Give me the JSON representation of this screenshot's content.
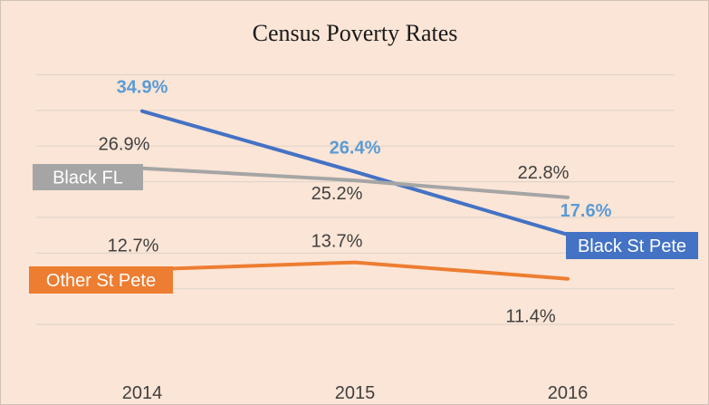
{
  "chart_data": {
    "type": "line",
    "title": "Census Poverty Rates",
    "xlabel": "",
    "ylabel": "",
    "categories": [
      "2014",
      "2015",
      "2016"
    ],
    "ylim": [
      0,
      40
    ],
    "grid": true,
    "legend": "inline series labels",
    "series": [
      {
        "name": "Black St Pete",
        "values": [
          34.9,
          26.4,
          17.6
        ],
        "labels": [
          "34.9%",
          "26.4%",
          "17.6%"
        ],
        "color": "#4472c4",
        "label_color": "#5b9bd5"
      },
      {
        "name": "Black FL",
        "values": [
          26.9,
          25.2,
          22.8
        ],
        "labels": [
          "26.9%",
          "25.2%",
          "22.8%"
        ],
        "color": "#a5a5a5",
        "label_color": "#404040"
      },
      {
        "name": "Other St Pete",
        "values": [
          12.7,
          13.7,
          11.4
        ],
        "labels": [
          "12.7%",
          "13.7%",
          "11.4%"
        ],
        "color": "#ed7d31",
        "label_color": "#404040"
      }
    ]
  }
}
